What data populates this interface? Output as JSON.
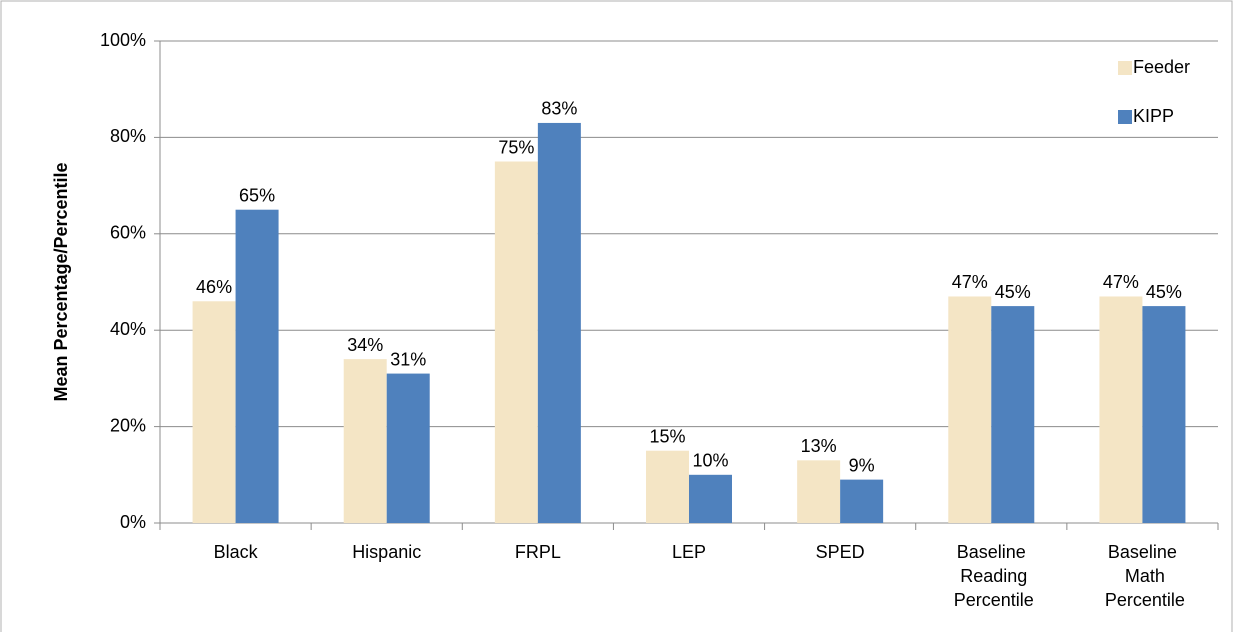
{
  "chart_data": {
    "type": "bar",
    "y_axis_label": "Mean Percentage/Percentile",
    "categories": [
      "Black",
      "Hispanic",
      "FRPL",
      "LEP",
      "SPED",
      "Baseline Reading Percentile",
      "Baseline Math Percentile"
    ],
    "series": [
      {
        "name": "Feeder",
        "color": "#f4e5c5",
        "values": [
          46,
          34,
          75,
          15,
          13,
          47,
          47
        ],
        "value_labels": [
          "46%",
          "34%",
          "75%",
          "15%",
          "13%",
          "47%",
          "47%"
        ]
      },
      {
        "name": "KIPP",
        "color": "#4f81bd",
        "values": [
          65,
          31,
          83,
          10,
          9,
          45,
          45
        ],
        "value_labels": [
          "65%",
          "31%",
          "83%",
          "10%",
          "9%",
          "45%",
          "45%"
        ]
      }
    ],
    "ylim": [
      0,
      100
    ],
    "yticks": [
      {
        "value": 0,
        "label": "0%"
      },
      {
        "value": 20,
        "label": "20%"
      },
      {
        "value": 40,
        "label": "40%"
      },
      {
        "value": 60,
        "label": "60%"
      },
      {
        "value": 80,
        "label": "80%"
      },
      {
        "value": 100,
        "label": "100%"
      }
    ],
    "grid": true,
    "legend": "top-right"
  }
}
